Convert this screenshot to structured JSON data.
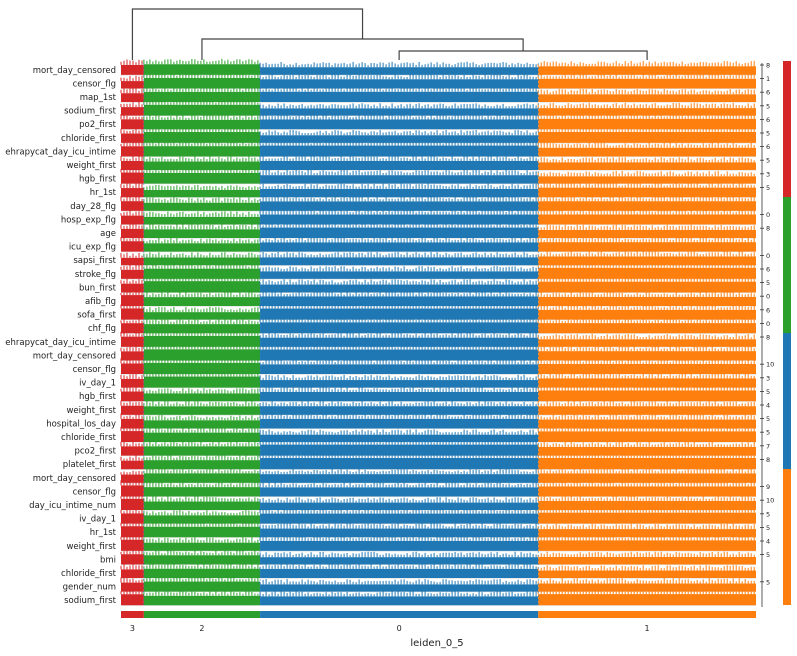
{
  "chart_data": {
    "type": "heatmap",
    "subtype": "stacked-violin-tracksplot",
    "xlabel": "leiden_0_5",
    "categories": [
      "3",
      "2",
      "0",
      "1"
    ],
    "group_order": [
      "3",
      "2",
      "0",
      "1"
    ],
    "group_colors": {
      "3": "#d62728",
      "2": "#2ca02c",
      "0": "#1f77b4",
      "1": "#ff7f0e"
    },
    "group_size_fraction": {
      "3": 0.036,
      "2": 0.183,
      "0": 0.438,
      "1": 0.343
    },
    "dendrogram": true,
    "right_bar_groups": [
      "3",
      "2",
      "0",
      "1"
    ],
    "tracks": [
      {
        "label": "mort_day_censored",
        "tick": "8",
        "g": "3"
      },
      {
        "label": "censor_flg",
        "tick": "1",
        "g": "3"
      },
      {
        "label": "map_1st",
        "tick": "6",
        "g": "3"
      },
      {
        "label": "sodium_first",
        "tick": "5",
        "g": "3"
      },
      {
        "label": "po2_first",
        "tick": "6",
        "g": "3"
      },
      {
        "label": "chloride_first",
        "tick": "5",
        "g": "3"
      },
      {
        "label": "ehrapycat_day_icu_intime",
        "tick": "6",
        "g": "3"
      },
      {
        "label": "weight_first",
        "tick": "5",
        "g": "3"
      },
      {
        "label": "hgb_first",
        "tick": "3",
        "g": "3"
      },
      {
        "label": "hr_1st",
        "tick": "5",
        "g": "3"
      },
      {
        "label": "day_28_flg",
        "tick": "",
        "g": "2"
      },
      {
        "label": "hosp_exp_flg",
        "tick": "0",
        "g": "2"
      },
      {
        "label": "age",
        "tick": "8",
        "g": "2"
      },
      {
        "label": "icu_exp_flg",
        "tick": "",
        "g": "2"
      },
      {
        "label": "sapsi_first",
        "tick": "0",
        "g": "2"
      },
      {
        "label": "stroke_flg",
        "tick": "6",
        "g": "2"
      },
      {
        "label": "bun_first",
        "tick": "5",
        "g": "2"
      },
      {
        "label": "afib_flg",
        "tick": "0",
        "g": "2"
      },
      {
        "label": "sofa_first",
        "tick": "6",
        "g": "2"
      },
      {
        "label": "chf_flg",
        "tick": "0",
        "g": "2"
      },
      {
        "label": "ehrapycat_day_icu_intime",
        "tick": "8",
        "g": "0"
      },
      {
        "label": "mort_day_censored",
        "tick": "",
        "g": "0"
      },
      {
        "label": "censor_flg",
        "tick": "10",
        "g": "0"
      },
      {
        "label": "iv_day_1",
        "tick": "3",
        "g": "0"
      },
      {
        "label": "hgb_first",
        "tick": "5",
        "g": "0"
      },
      {
        "label": "weight_first",
        "tick": "4",
        "g": "0"
      },
      {
        "label": "hospital_los_day",
        "tick": "5",
        "g": "0"
      },
      {
        "label": "chloride_first",
        "tick": "5",
        "g": "0"
      },
      {
        "label": "pco2_first",
        "tick": "7",
        "g": "0"
      },
      {
        "label": "platelet_first",
        "tick": "8",
        "g": "0"
      },
      {
        "label": "mort_day_censored",
        "tick": "",
        "g": "1"
      },
      {
        "label": "censor_flg",
        "tick": "9",
        "g": "1"
      },
      {
        "label": "day_icu_intime_num",
        "tick": "10",
        "g": "1"
      },
      {
        "label": "iv_day_1",
        "tick": "5",
        "g": "1"
      },
      {
        "label": "hr_1st",
        "tick": "5",
        "g": "1"
      },
      {
        "label": "weight_first",
        "tick": "4",
        "g": "1"
      },
      {
        "label": "bmi",
        "tick": "5",
        "g": "1"
      },
      {
        "label": "chloride_first",
        "tick": "",
        "g": "1"
      },
      {
        "label": "gender_num",
        "tick": "5",
        "g": "1"
      },
      {
        "label": "sodium_first",
        "tick": "",
        "g": "1"
      }
    ]
  }
}
